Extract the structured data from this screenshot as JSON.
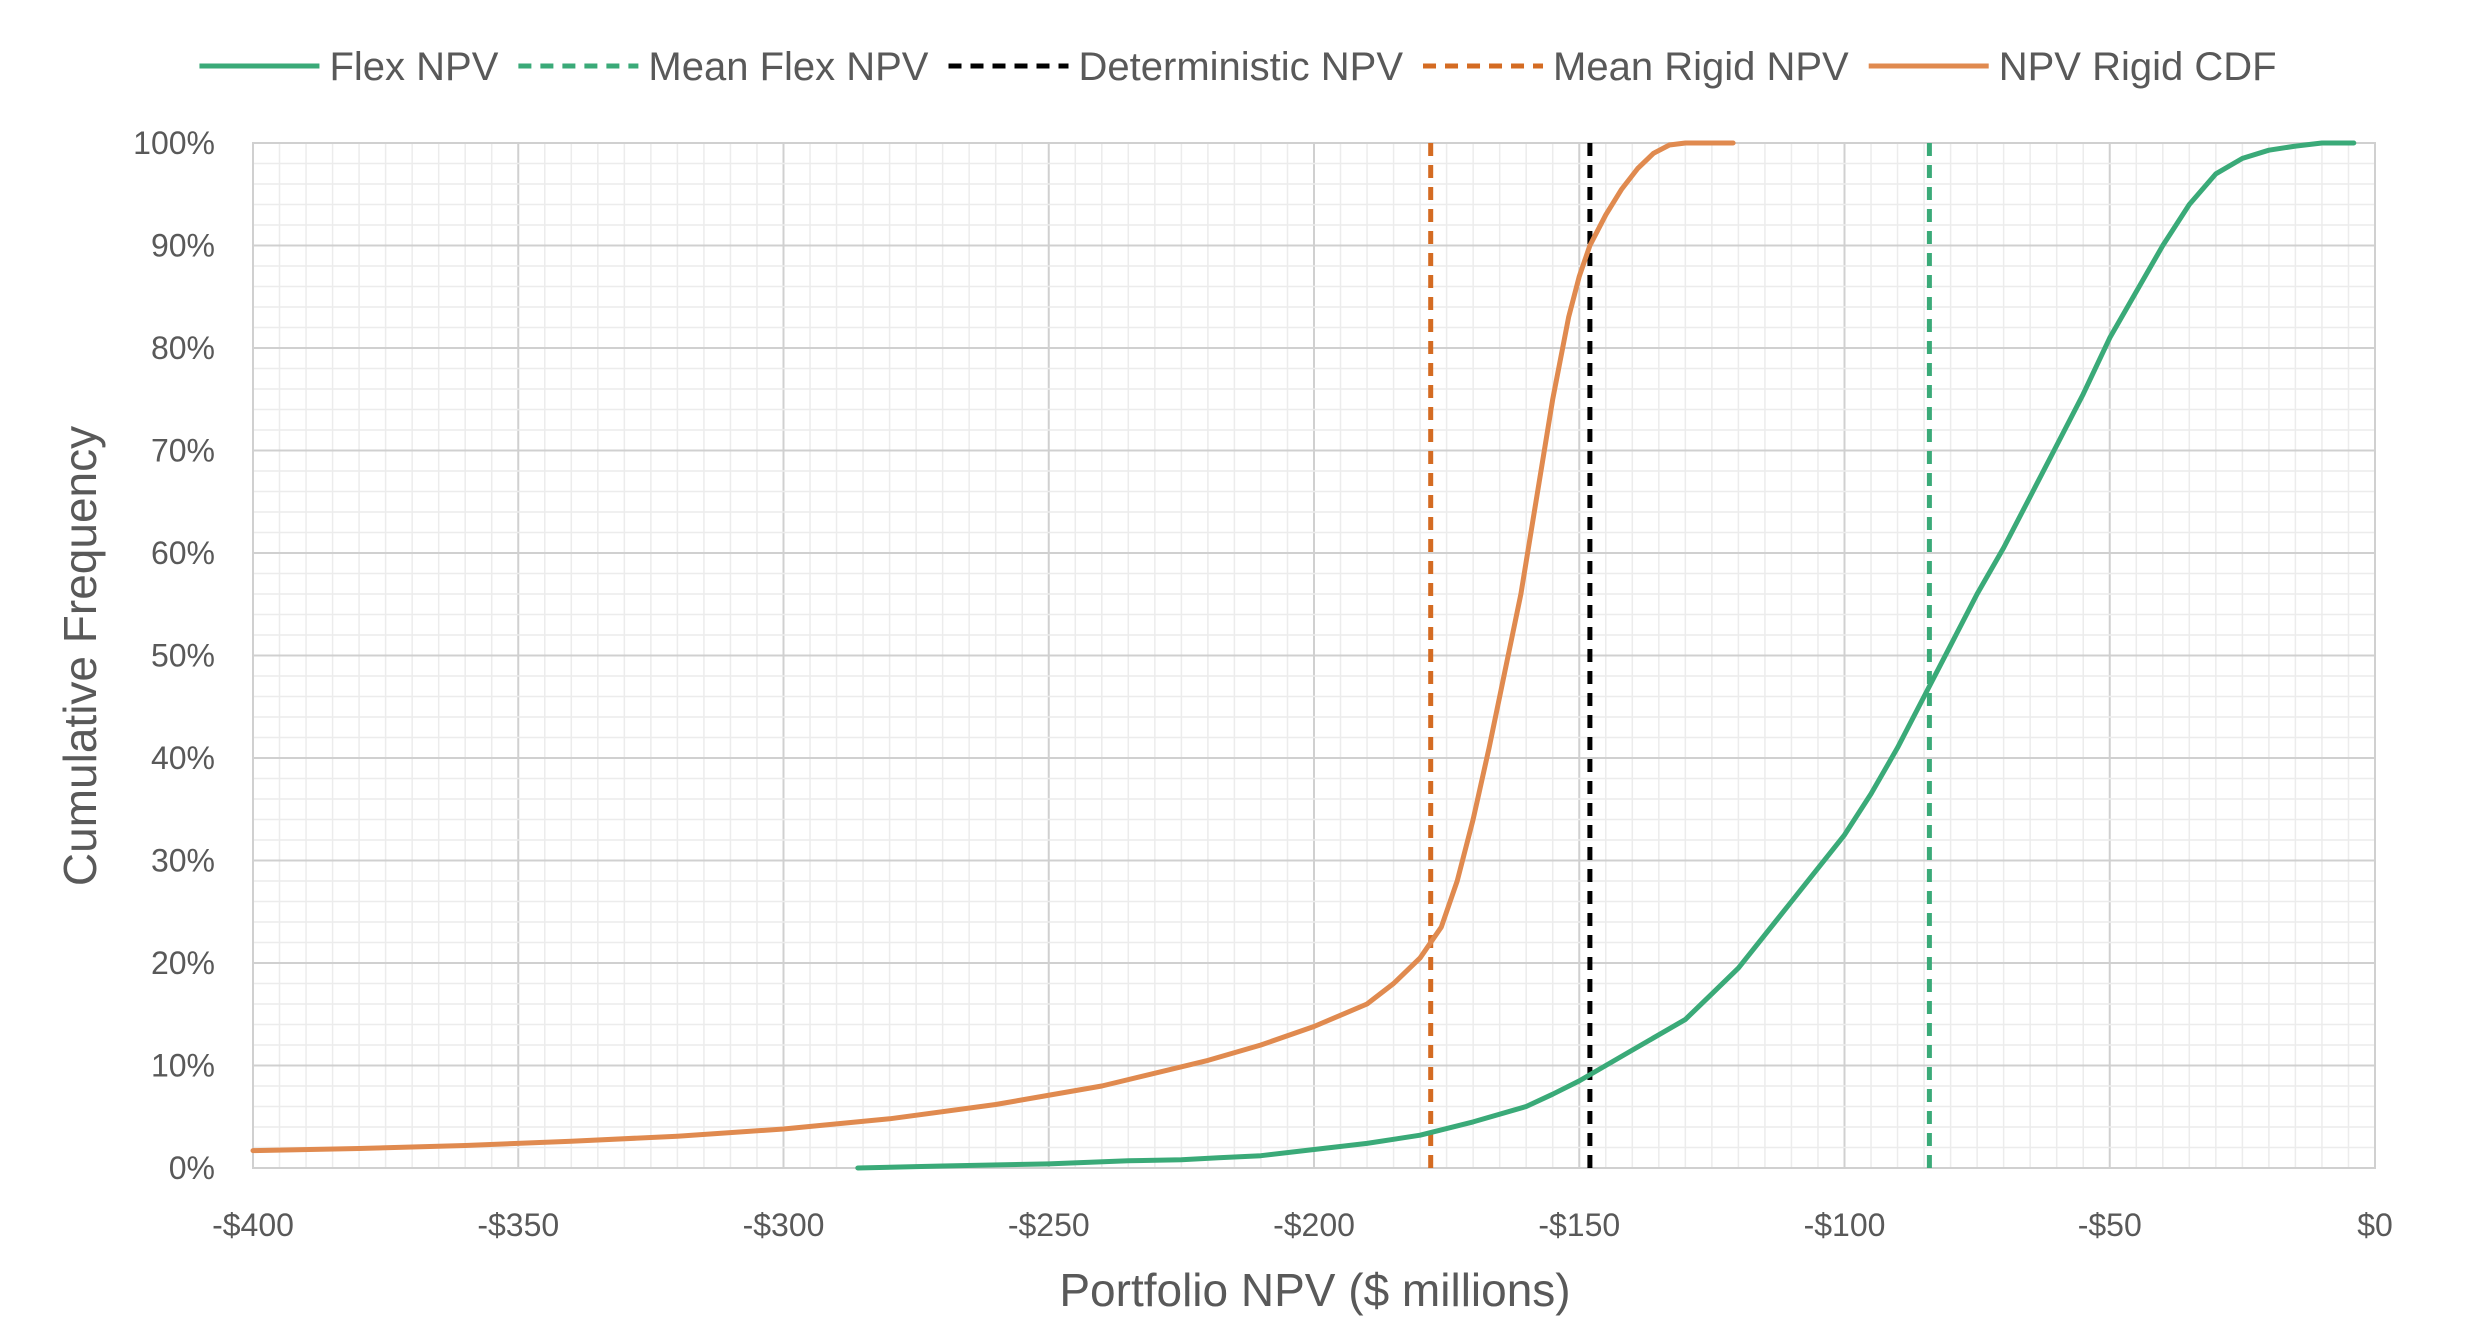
{
  "chart_data": {
    "type": "line",
    "title": "",
    "xlabel": "Portfolio NPV ($ millions)",
    "ylabel": "Cumulative Frequency",
    "xlim": [
      -400,
      0
    ],
    "ylim": [
      0,
      1
    ],
    "x_ticks": [
      -400,
      -350,
      -300,
      -250,
      -200,
      -150,
      -100,
      -50,
      0
    ],
    "x_tick_labels": [
      "-$400",
      "-$350",
      "-$300",
      "-$250",
      "-$200",
      "-$150",
      "-$100",
      "-$50",
      "$0"
    ],
    "y_ticks": [
      0,
      0.1,
      0.2,
      0.3,
      0.4,
      0.5,
      0.6,
      0.7,
      0.8,
      0.9,
      1.0
    ],
    "y_tick_labels": [
      "0%",
      "10%",
      "20%",
      "30%",
      "40%",
      "50%",
      "60%",
      "70%",
      "80%",
      "90%",
      "100%"
    ],
    "grid": true,
    "legend_position": "top",
    "series": [
      {
        "name": "Flex NPV",
        "style": "solid",
        "color": "#3aaa78",
        "x": [
          -286,
          -270,
          -250,
          -235,
          -225,
          -218,
          -210,
          -200,
          -190,
          -180,
          -170,
          -160,
          -155,
          -150,
          -145,
          -140,
          -135,
          -130,
          -125,
          -120,
          -110,
          -100,
          -95,
          -90,
          -85,
          -80,
          -75,
          -70,
          -65,
          -60,
          -55,
          -50,
          -45,
          -40,
          -35,
          -30,
          -25,
          -20,
          -15,
          -10,
          -5,
          -4
        ],
        "y": [
          0.0,
          0.002,
          0.004,
          0.007,
          0.008,
          0.01,
          0.012,
          0.018,
          0.024,
          0.032,
          0.045,
          0.06,
          0.072,
          0.085,
          0.1,
          0.115,
          0.13,
          0.145,
          0.17,
          0.195,
          0.26,
          0.325,
          0.365,
          0.41,
          0.46,
          0.51,
          0.56,
          0.605,
          0.655,
          0.705,
          0.755,
          0.81,
          0.855,
          0.9,
          0.94,
          0.97,
          0.985,
          0.993,
          0.997,
          1.0,
          1.0,
          1.0
        ]
      },
      {
        "name": "Mean Flex NPV",
        "style": "dashed",
        "color": "#3aaa78",
        "x": [
          -84,
          -84
        ],
        "y": [
          0,
          1
        ]
      },
      {
        "name": "Deterministic NPV",
        "style": "dashed",
        "color": "#000000",
        "x": [
          -148,
          -148
        ],
        "y": [
          0,
          1
        ]
      },
      {
        "name": "Mean Rigid NPV",
        "style": "dashed",
        "color": "#d46b22",
        "x": [
          -178,
          -178
        ],
        "y": [
          0,
          1
        ]
      },
      {
        "name": "NPV Rigid CDF",
        "style": "solid",
        "color": "#e08a4f",
        "x": [
          -400,
          -380,
          -360,
          -340,
          -320,
          -300,
          -280,
          -260,
          -240,
          -220,
          -210,
          -200,
          -190,
          -185,
          -180,
          -176,
          -173,
          -170,
          -167,
          -164,
          -161,
          -158,
          -155,
          -152,
          -150,
          -148,
          -145,
          -142,
          -139,
          -136,
          -133,
          -130,
          -128,
          -125,
          -121
        ],
        "y": [
          0.017,
          0.019,
          0.022,
          0.026,
          0.031,
          0.038,
          0.048,
          0.062,
          0.08,
          0.105,
          0.12,
          0.138,
          0.16,
          0.18,
          0.205,
          0.235,
          0.28,
          0.34,
          0.41,
          0.485,
          0.56,
          0.655,
          0.75,
          0.83,
          0.87,
          0.9,
          0.93,
          0.955,
          0.975,
          0.99,
          0.998,
          1.0,
          1.0,
          1.0,
          1.0
        ]
      }
    ]
  }
}
